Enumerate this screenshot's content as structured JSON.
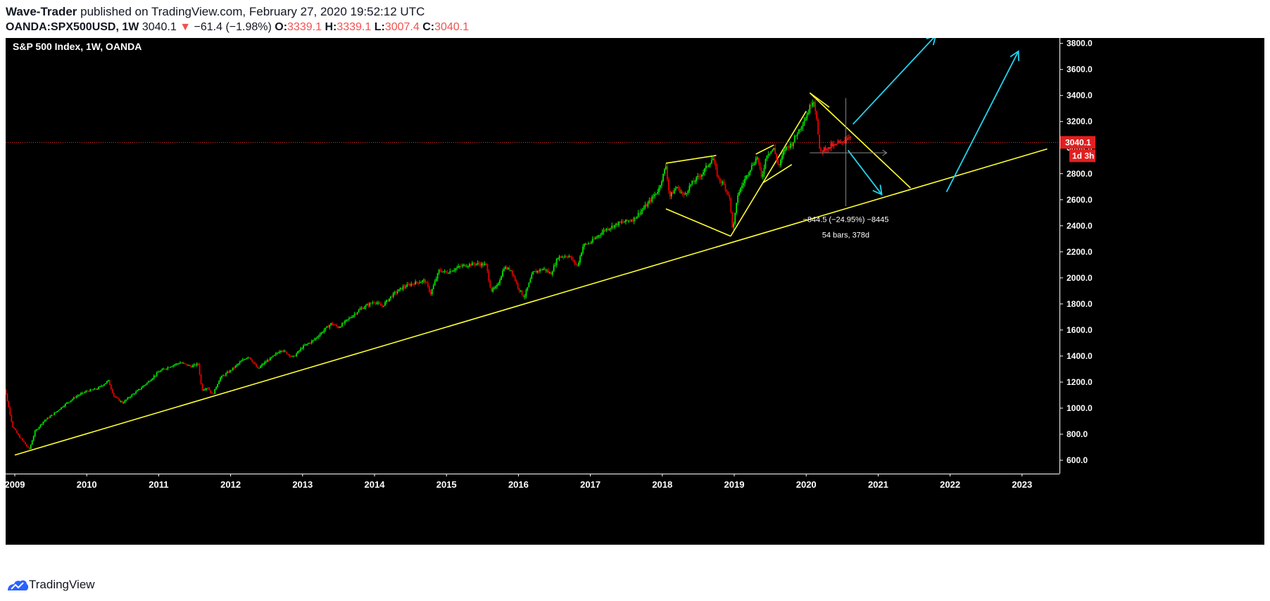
{
  "header": {
    "author": "Wave-Trader",
    "published_text": " published on TradingView.com, February 27, 2020 19:52:12 UTC",
    "symbol": "OANDA:SPX500USD, 1W",
    "last": "3040.1",
    "change": "−61.4 (−1.98%)",
    "o_label": "O:",
    "o_value": "3339.1",
    "h_label": "H:",
    "h_value": "3339.1",
    "l_label": "L:",
    "l_value": "3007.4",
    "c_label": "C:",
    "c_value": "3040.1"
  },
  "chart_data": {
    "type": "candlestick",
    "title": "S&P 500 Index, 1W, OANDA",
    "x_ticks": [
      "2009",
      "2010",
      "2011",
      "2012",
      "2013",
      "2014",
      "2015",
      "2016",
      "2017",
      "2018",
      "2019",
      "2020",
      "2021",
      "2022",
      "2023"
    ],
    "y_ticks": [
      "600.0",
      "800.0",
      "1000.0",
      "1200.0",
      "1400.0",
      "1600.0",
      "1800.0",
      "2000.0",
      "2200.0",
      "2400.0",
      "2600.0",
      "2800.0",
      "3000.0",
      "3200.0",
      "3400.0",
      "3600.0",
      "3800.0"
    ],
    "ylim": [
      580,
      3880
    ],
    "xlim": [
      2008.75,
      2023.35
    ],
    "last_price_label": "3040.1",
    "countdown_label": "1d 3h",
    "colors": {
      "up": "#00e600",
      "down": "#e60000",
      "recent": "#ff1a1a",
      "trend": "#ffff33",
      "arrow": "#22d3ee",
      "price_line": "#ff2a2a"
    },
    "price_path": [
      [
        2008.8,
        1265
      ],
      [
        2008.88,
        1100
      ],
      [
        2008.97,
        860
      ],
      [
        2009.05,
        790
      ],
      [
        2009.13,
        735
      ],
      [
        2009.2,
        680
      ],
      [
        2009.28,
        820
      ],
      [
        2009.4,
        900
      ],
      [
        2009.55,
        960
      ],
      [
        2009.7,
        1030
      ],
      [
        2009.85,
        1090
      ],
      [
        2010.0,
        1130
      ],
      [
        2010.15,
        1150
      ],
      [
        2010.3,
        1210
      ],
      [
        2010.38,
        1090
      ],
      [
        2010.5,
        1040
      ],
      [
        2010.6,
        1090
      ],
      [
        2010.7,
        1130
      ],
      [
        2010.85,
        1200
      ],
      [
        2011.0,
        1280
      ],
      [
        2011.15,
        1320
      ],
      [
        2011.3,
        1350
      ],
      [
        2011.45,
        1320
      ],
      [
        2011.55,
        1340
      ],
      [
        2011.6,
        1140
      ],
      [
        2011.68,
        1160
      ],
      [
        2011.75,
        1100
      ],
      [
        2011.85,
        1230
      ],
      [
        2012.0,
        1290
      ],
      [
        2012.15,
        1360
      ],
      [
        2012.25,
        1400
      ],
      [
        2012.38,
        1300
      ],
      [
        2012.45,
        1340
      ],
      [
        2012.6,
        1400
      ],
      [
        2012.7,
        1450
      ],
      [
        2012.87,
        1390
      ],
      [
        2013.0,
        1470
      ],
      [
        2013.15,
        1520
      ],
      [
        2013.3,
        1600
      ],
      [
        2013.4,
        1650
      ],
      [
        2013.5,
        1620
      ],
      [
        2013.65,
        1690
      ],
      [
        2013.8,
        1760
      ],
      [
        2014.0,
        1820
      ],
      [
        2014.1,
        1780
      ],
      [
        2014.25,
        1870
      ],
      [
        2014.4,
        1930
      ],
      [
        2014.55,
        1960
      ],
      [
        2014.7,
        1980
      ],
      [
        2014.78,
        1880
      ],
      [
        2014.9,
        2060
      ],
      [
        2015.0,
        2040
      ],
      [
        2015.2,
        2090
      ],
      [
        2015.4,
        2110
      ],
      [
        2015.55,
        2100
      ],
      [
        2015.62,
        1900
      ],
      [
        2015.7,
        1930
      ],
      [
        2015.8,
        2080
      ],
      [
        2015.9,
        2060
      ],
      [
        2016.0,
        1920
      ],
      [
        2016.08,
        1850
      ],
      [
        2016.2,
        2040
      ],
      [
        2016.35,
        2070
      ],
      [
        2016.45,
        2030
      ],
      [
        2016.55,
        2160
      ],
      [
        2016.7,
        2170
      ],
      [
        2016.82,
        2090
      ],
      [
        2016.9,
        2250
      ],
      [
        2017.0,
        2270
      ],
      [
        2017.2,
        2370
      ],
      [
        2017.4,
        2420
      ],
      [
        2017.6,
        2450
      ],
      [
        2017.8,
        2570
      ],
      [
        2017.95,
        2680
      ],
      [
        2018.05,
        2860
      ],
      [
        2018.1,
        2620
      ],
      [
        2018.2,
        2700
      ],
      [
        2018.3,
        2630
      ],
      [
        2018.4,
        2720
      ],
      [
        2018.55,
        2800
      ],
      [
        2018.7,
        2920
      ],
      [
        2018.78,
        2760
      ],
      [
        2018.85,
        2720
      ],
      [
        2018.93,
        2630
      ],
      [
        2018.98,
        2360
      ],
      [
        2019.05,
        2640
      ],
      [
        2019.2,
        2820
      ],
      [
        2019.32,
        2930
      ],
      [
        2019.38,
        2760
      ],
      [
        2019.45,
        2950
      ],
      [
        2019.55,
        2990
      ],
      [
        2019.62,
        2850
      ],
      [
        2019.7,
        2990
      ],
      [
        2019.8,
        3030
      ],
      [
        2019.9,
        3140
      ],
      [
        2020.0,
        3240
      ],
      [
        2020.1,
        3380
      ],
      [
        2020.15,
        3220
      ],
      [
        2020.18,
        2980
      ],
      [
        2020.21,
        2960
      ]
    ],
    "recent_path": [
      [
        2020.23,
        2980
      ],
      [
        2020.27,
        3000
      ],
      [
        2020.31,
        2990
      ],
      [
        2020.35,
        3020
      ],
      [
        2020.4,
        3010
      ],
      [
        2020.44,
        3040
      ],
      [
        2020.48,
        3030
      ],
      [
        2020.52,
        3060
      ],
      [
        2020.56,
        3070
      ],
      [
        2020.6,
        3090
      ],
      [
        2020.63,
        3100
      ]
    ],
    "trend_lines": [
      [
        [
          2009.0,
          640
        ],
        [
          2023.35,
          2990
        ]
      ],
      [
        [
          2018.05,
          2880
        ],
        [
          2018.75,
          2940
        ]
      ],
      [
        [
          2018.05,
          2530
        ],
        [
          2018.95,
          2320
        ]
      ],
      [
        [
          2018.95,
          2320
        ],
        [
          2020.0,
          3280
        ]
      ],
      [
        [
          2019.3,
          2950
        ],
        [
          2019.55,
          3020
        ]
      ],
      [
        [
          2019.4,
          2730
        ],
        [
          2019.8,
          2870
        ]
      ],
      [
        [
          2020.05,
          3420
        ],
        [
          2021.45,
          2690
        ]
      ],
      [
        [
          2020.05,
          3420
        ],
        [
          2020.32,
          3310
        ]
      ]
    ],
    "arrows": [
      [
        [
          2020.65,
          3180
        ],
        [
          1.82,
          3860
        ]
      ],
      [
        [
          2020.58,
          2980
        ],
        [
          2021.05,
          2640
        ]
      ],
      [
        [
          2021.0,
          2640
        ],
        [
          2021.95,
          3740
        ]
      ]
    ],
    "measure": {
      "line": [
        2020.55,
        2550,
        2020.55,
        3380
      ],
      "hline": [
        2020.05,
        2960,
        2021.12,
        2960
      ],
      "text1": "−844.5 (−24.95%) −8445",
      "text2": "54 bars, 378d",
      "anchor": [
        2020.55,
        2430
      ]
    }
  },
  "footer": {
    "brand": "TradingView"
  }
}
